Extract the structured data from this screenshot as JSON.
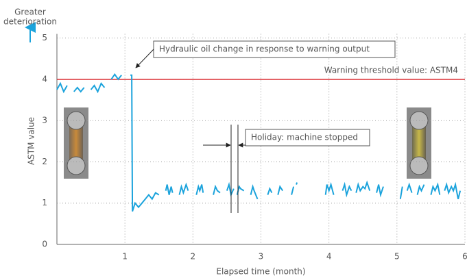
{
  "chart_data": {
    "type": "line",
    "x_label": "Elapsed time (month)",
    "y_label": "ASTM value",
    "direction_label": [
      "Greater",
      "deterioration"
    ],
    "threshold": 4,
    "threshold_label": "Warning threshold value: ASTM4",
    "threshold_color": "#d9262b",
    "annotations": [
      "Hydraulic oil change in response to warning output",
      "Holiday: machine stopped"
    ],
    "xlim": [
      0,
      6
    ],
    "xticks": [
      1,
      2,
      3,
      4,
      5,
      6
    ],
    "ylim": [
      0,
      5.1
    ],
    "yticks": [
      0,
      1,
      2,
      3,
      4,
      5
    ],
    "grid": true,
    "series": [
      {
        "color": "#1ba3dc",
        "x": [
          0,
          0.05,
          0.1,
          0.15,
          0.2,
          0.25,
          0.3,
          0.35,
          0.4,
          0.45,
          0.5,
          0.55,
          0.6,
          0.65,
          0.7,
          0.75,
          0.8,
          0.85,
          0.9,
          0.95,
          1,
          1.08,
          1.1,
          1.11,
          1.15,
          1.2,
          1.25,
          1.3,
          1.35,
          1.4,
          1.45,
          1.5,
          1.55,
          1.6,
          1.62,
          1.65,
          1.68,
          1.7,
          1.72,
          1.8,
          1.83,
          1.86,
          1.9,
          1.93,
          1.96,
          2.05,
          2.08,
          2.1,
          2.13,
          2.15,
          2.2,
          2.3,
          2.33,
          2.36,
          2.4,
          2.45,
          2.5,
          2.53,
          2.56,
          2.6,
          2.62,
          2.65,
          2.68,
          2.7,
          2.75,
          2.78,
          2.85,
          2.88,
          2.9,
          2.95,
          3,
          3.1,
          3.13,
          3.16,
          3.2,
          3.25,
          3.28,
          3.32,
          3.35,
          3.45,
          3.48,
          3.5,
          3.52,
          3.53,
          3.55,
          3.95,
          3.97,
          4,
          4.03,
          4.07,
          4.1,
          4.2,
          4.23,
          4.26,
          4.3,
          4.33,
          4.36,
          4.4,
          4.43,
          4.46,
          4.5,
          4.53,
          4.56,
          4.6,
          4.63,
          4.7,
          4.73,
          4.76,
          4.8,
          4.85,
          5.05,
          5.08,
          5.1,
          5.15,
          5.18,
          5.22,
          5.25,
          5.3,
          5.33,
          5.36,
          5.4,
          5.43,
          5.5,
          5.53,
          5.56,
          5.6,
          5.63,
          5.66,
          5.7,
          5.73,
          5.76,
          5.8,
          5.83,
          5.86,
          5.9,
          5.93
        ],
        "values": [
          3.75,
          3.9,
          3.7,
          3.85,
          null,
          3.7,
          3.8,
          3.7,
          3.8,
          null,
          3.75,
          3.85,
          3.7,
          3.9,
          3.8,
          null,
          4,
          4.12,
          4,
          4.1,
          null,
          4.1,
          4.1,
          0.8,
          1,
          0.9,
          1,
          1.1,
          1.2,
          1.1,
          1.25,
          1.2,
          null,
          1.3,
          1.45,
          1.2,
          1.4,
          1.25,
          null,
          1.2,
          1.4,
          1.25,
          1.45,
          1.3,
          null,
          1.2,
          1.4,
          1.3,
          1.45,
          1.25,
          null,
          1.2,
          1.4,
          1.3,
          1.25,
          null,
          1.3,
          1.45,
          1.2,
          1.35,
          null,
          1.2,
          1.4,
          1.35,
          1.3,
          null,
          1.2,
          1.4,
          1.3,
          1.1,
          null,
          1.2,
          1.35,
          1.25,
          null,
          1.2,
          1.4,
          1.3,
          null,
          1.2,
          1.4,
          null,
          1.45,
          1.5,
          null,
          1.2,
          1.45,
          1.3,
          1.45,
          1.2,
          null,
          1.3,
          1.45,
          1.2,
          1.4,
          1.3,
          null,
          1.25,
          1.45,
          1.3,
          1.4,
          1.35,
          1.5,
          1.3,
          null,
          1.25,
          1.45,
          1.2,
          1.4,
          null,
          1.1,
          1.4,
          null,
          1.3,
          1.45,
          1.25,
          null,
          1.2,
          1.4,
          1.3,
          1.45,
          null,
          1.2,
          1.4,
          1.3,
          1.45,
          1.2,
          null,
          1.3,
          1.45,
          1.25,
          1.4,
          1.3,
          1.45,
          1.1,
          1.3
        ]
      }
    ]
  }
}
